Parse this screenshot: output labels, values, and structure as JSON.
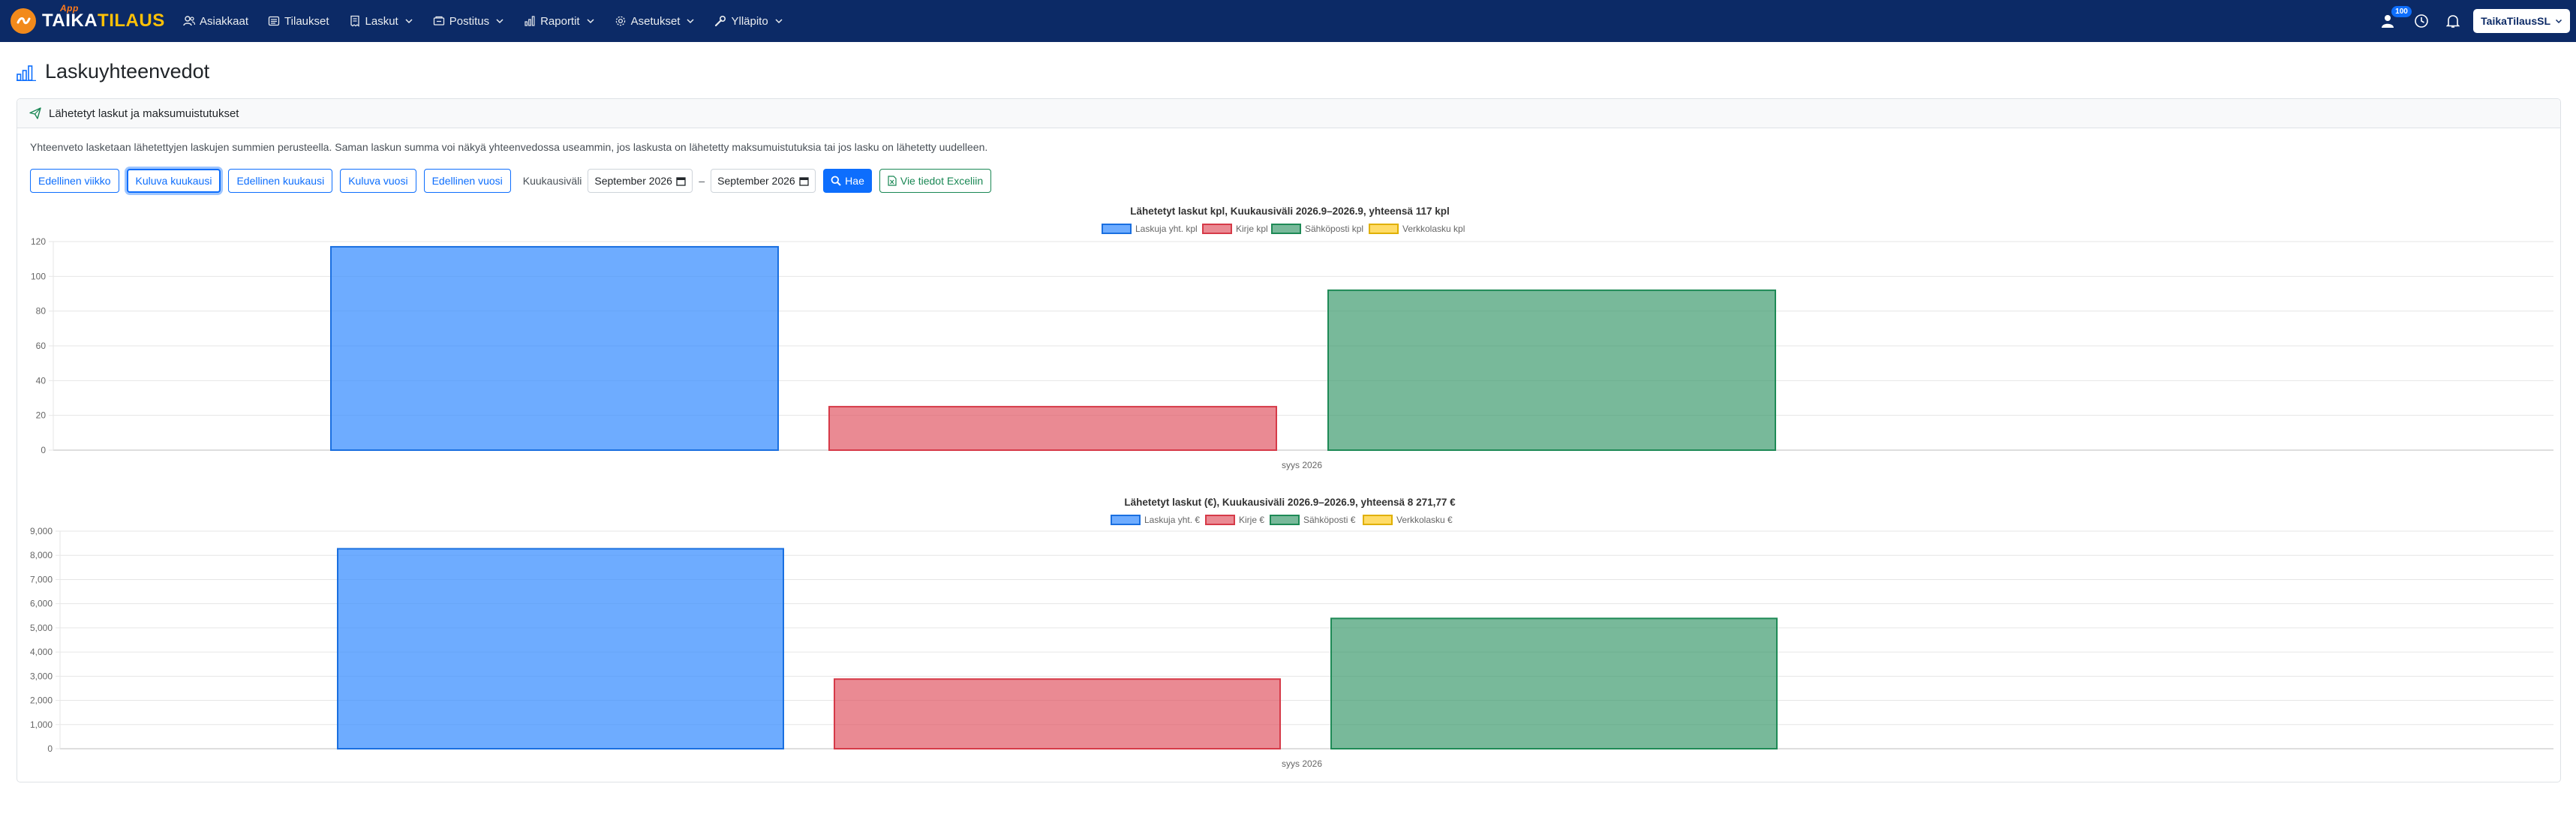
{
  "navbar": {
    "brand_taika": "TAIKA",
    "brand_tilaus": "TILAUS",
    "brand_app": "App",
    "items": [
      {
        "label": "Asiakkaat",
        "icon": "users-icon",
        "dropdown": false
      },
      {
        "label": "Tilaukset",
        "icon": "list-icon",
        "dropdown": false
      },
      {
        "label": "Laskut",
        "icon": "receipt-icon",
        "dropdown": true
      },
      {
        "label": "Postitus",
        "icon": "mail-icon",
        "dropdown": true
      },
      {
        "label": "Raportit",
        "icon": "bar-chart-icon",
        "dropdown": true
      },
      {
        "label": "Asetukset",
        "icon": "gear-icon",
        "dropdown": true
      },
      {
        "label": "Ylläpito",
        "icon": "wrench-icon",
        "dropdown": true
      }
    ],
    "badge_count": "100",
    "user_label": "TaikaTilausSL"
  },
  "page": {
    "title": "Laskuyhteenvedot",
    "card_title": "Lähetetyt laskut ja maksumuistutukset",
    "description": "Yhteenveto lasketaan lähetettyjen laskujen summien perusteella. Saman laskun summa voi näkyä yhteenvedossa useammin, jos laskusta on lähetetty maksumuistutuksia tai jos lasku on lähetetty uudelleen."
  },
  "controls": {
    "buttons": [
      "Edellinen viikko",
      "Kuluva kuukausi",
      "Edellinen kuukausi",
      "Kuluva vuosi",
      "Edellinen vuosi"
    ],
    "active_button": "Kuluva kuukausi",
    "range_label": "Kuukausiväli",
    "from_value": "September 2026",
    "separator": "–",
    "to_value": "September 2026",
    "search_label": "Hae",
    "excel_label": "Vie tiedot Exceliin"
  },
  "colors": {
    "navbar": "#0c2a66",
    "primary": "#0d6efd",
    "success": "#198754",
    "brand_orange": "#f28a1b",
    "brand_yellow": "#ffc107"
  },
  "chart_data": [
    {
      "type": "bar",
      "title": "Lähetetyt laskut kpl, Kuukausiväli 2026.9–2026.9, yhteensä 117 kpl",
      "categories": [
        "syys 2026"
      ],
      "series": [
        {
          "name": "Laskuja yht. kpl",
          "values": [
            117
          ],
          "fill": "rgba(54,140,255,0.72)",
          "stroke": "#1a6fe0"
        },
        {
          "name": "Kirje kpl",
          "values": [
            25
          ],
          "fill": "rgba(224,82,96,0.68)",
          "stroke": "#d63a48"
        },
        {
          "name": "Sähköposti kpl",
          "values": [
            92
          ],
          "fill": "rgba(56,152,106,0.68)",
          "stroke": "#1e8a56"
        },
        {
          "name": "Verkkolasku kpl",
          "values": [
            0
          ],
          "fill": "rgba(255,205,40,0.7)",
          "stroke": "#e0b000"
        }
      ],
      "ylim": [
        0,
        120
      ],
      "yticks": [
        0,
        20,
        40,
        60,
        80,
        100,
        120
      ],
      "ytick_labels": [
        "0",
        "20",
        "40",
        "60",
        "80",
        "100",
        "120"
      ],
      "grid": true,
      "legend": "top"
    },
    {
      "type": "bar",
      "title": "Lähetetyt laskut (€), Kuukausiväli 2026.9–2026.9, yhteensä 8 271,77 €",
      "categories": [
        "syys 2026"
      ],
      "series": [
        {
          "name": "Laskuja yht. €",
          "values": [
            8271.77
          ],
          "fill": "rgba(54,140,255,0.72)",
          "stroke": "#1a6fe0"
        },
        {
          "name": "Kirje €",
          "values": [
            2880
          ],
          "fill": "rgba(224,82,96,0.68)",
          "stroke": "#d63a48"
        },
        {
          "name": "Sähköposti €",
          "values": [
            5390
          ],
          "fill": "rgba(56,152,106,0.68)",
          "stroke": "#1e8a56"
        },
        {
          "name": "Verkkolasku €",
          "values": [
            0
          ],
          "fill": "rgba(255,205,40,0.7)",
          "stroke": "#e0b000"
        }
      ],
      "ylim": [
        0,
        9000
      ],
      "yticks": [
        0,
        1000,
        2000,
        3000,
        4000,
        5000,
        6000,
        7000,
        8000,
        9000
      ],
      "ytick_labels": [
        "0",
        "1,000",
        "2,000",
        "3,000",
        "4,000",
        "5,000",
        "6,000",
        "7,000",
        "8,000",
        "9,000"
      ],
      "grid": true,
      "legend": "top"
    }
  ]
}
